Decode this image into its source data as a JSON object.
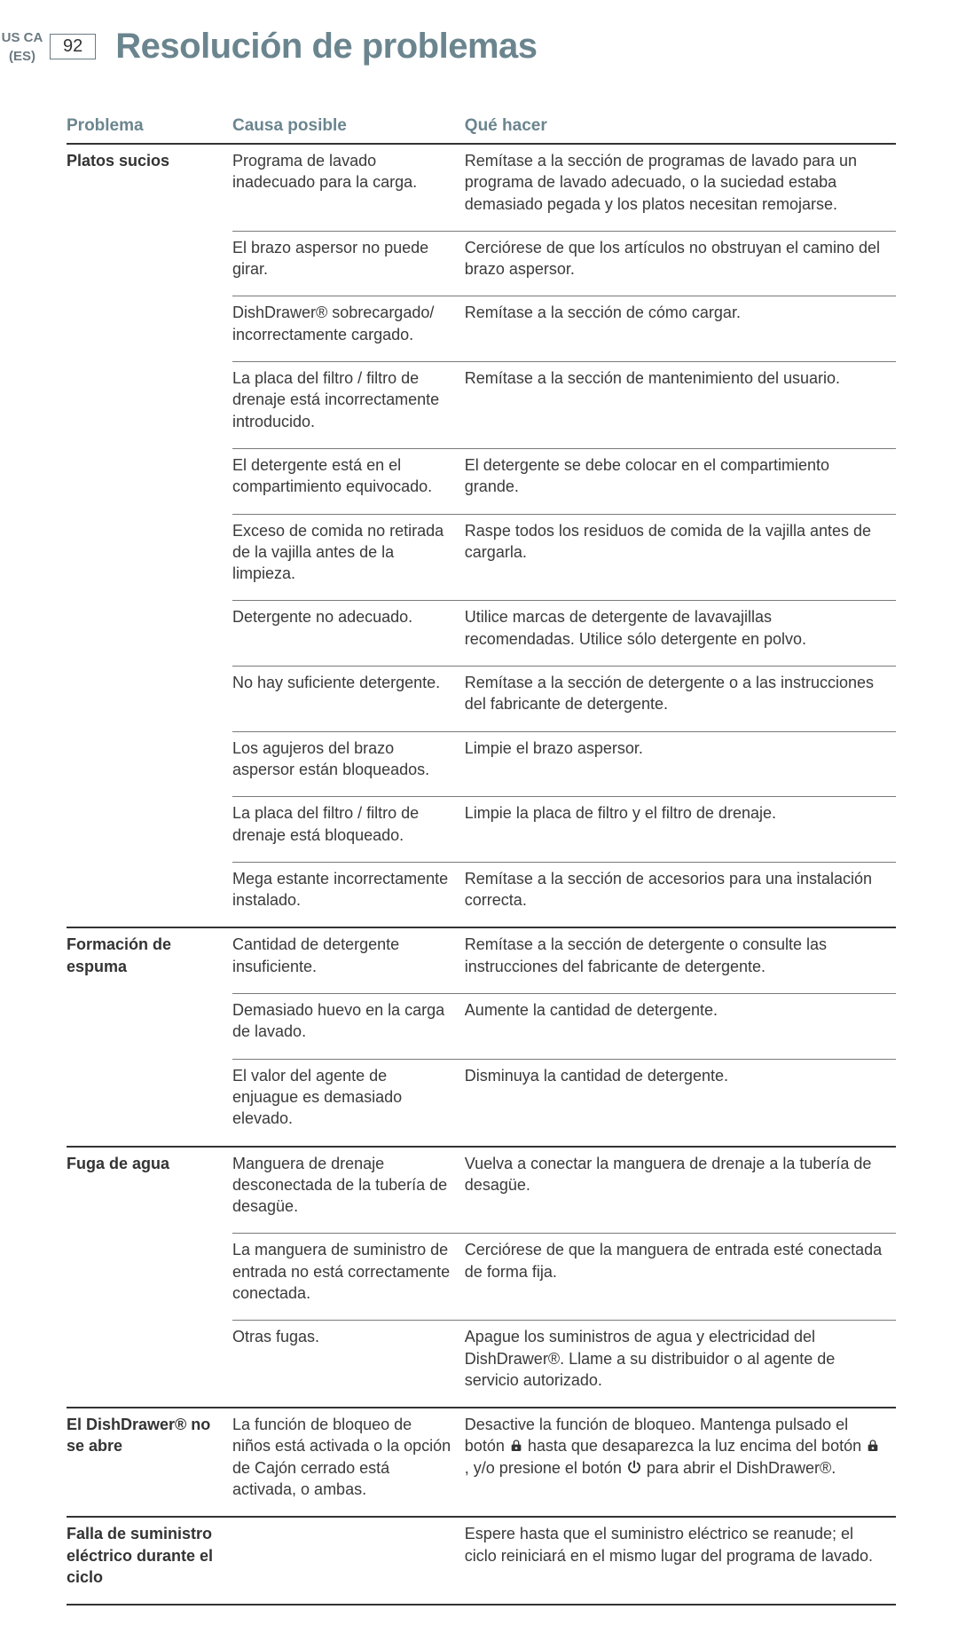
{
  "locale_row1": "US CA",
  "locale_row2": "(ES)",
  "page_number": "92",
  "page_title": "Resolución de problemas",
  "columns": [
    "Problema",
    "Causa posible",
    "Qué hacer"
  ],
  "problems": [
    {
      "label": "Platos sucios",
      "rows": [
        {
          "cause": "Programa de lavado inadecuado para la carga.",
          "action": "Remítase a la sección de programas de lavado para un programa de lavado adecuado, o la suciedad estaba demasiado pegada y los platos necesitan remojarse."
        },
        {
          "cause": "El brazo aspersor no puede girar.",
          "action": "Cerciórese de que los artículos no obstruyan el camino del brazo aspersor."
        },
        {
          "cause": "DishDrawer® sobrecargado/ incorrectamente cargado.",
          "action": "Remítase a la sección de cómo cargar."
        },
        {
          "cause": "La placa del filtro / filtro de drenaje está incorrectamente introducido.",
          "action": "Remítase a la sección de mantenimiento del usuario."
        },
        {
          "cause": "El detergente está en el compartimiento equivocado.",
          "action": "El detergente se debe colocar en el compartimiento grande."
        },
        {
          "cause": "Exceso de comida no retirada de la vajilla antes de la limpieza.",
          "action": "Raspe todos los residuos de comida de la vajilla antes de cargarla."
        },
        {
          "cause": "Detergente no adecuado.",
          "action": "Utilice marcas de detergente de lavavajillas recomendadas. Utilice sólo detergente en polvo."
        },
        {
          "cause": "No hay suficiente detergente.",
          "action": "Remítase a la sección de detergente o a las instrucciones del fabricante de detergente."
        },
        {
          "cause": "Los agujeros del brazo aspersor están bloqueados.",
          "action": "Limpie el brazo aspersor."
        },
        {
          "cause": "La placa del filtro / filtro de drenaje está bloqueado.",
          "action": "Limpie la placa de filtro y el filtro de drenaje."
        },
        {
          "cause": "Mega estante incorrectamente instalado.",
          "action": "Remítase a la sección de accesorios para una instalación correcta."
        }
      ]
    },
    {
      "label": "Formación de espuma",
      "rows": [
        {
          "cause": "Cantidad de detergente insuficiente.",
          "action": "Remítase a la sección de detergente o consulte las instrucciones del fabricante de detergente."
        },
        {
          "cause": "Demasiado huevo en la carga de lavado.",
          "action": "Aumente la cantidad de detergente."
        },
        {
          "cause": "El valor del agente de enjuague es demasiado elevado.",
          "action": "Disminuya la cantidad de detergente."
        }
      ]
    },
    {
      "label": "Fuga de agua",
      "rows": [
        {
          "cause": "Manguera de drenaje desconectada de la tubería de desagüe.",
          "action": "Vuelva a conectar la manguera de drenaje a la tubería de desagüe."
        },
        {
          "cause": "La manguera de suministro de entrada no está correctamente conectada.",
          "action": "Cerciórese de que la manguera de entrada esté conectada de forma fija."
        },
        {
          "cause": "Otras fugas.",
          "action": "Apague los suministros de agua y electricidad del DishDrawer®. Llame a su distribuidor o al agente de servicio autorizado."
        }
      ]
    },
    {
      "label": "El DishDrawer® no se abre",
      "rows": [
        {
          "cause": "La función de bloqueo de niños está activada o la opción de Cajón cerrado está activada, o ambas.",
          "action_parts": {
            "p1": "Desactive la función de bloqueo. Mantenga pulsado el botón ",
            "p2": " hasta que desaparezca la luz encima del botón ",
            "p3": " , y/o presione el botón ",
            "p4": " para abrir el DishDrawer®."
          }
        }
      ]
    },
    {
      "label": "Falla de suministro eléctrico durante el ciclo",
      "rows": [
        {
          "cause": "",
          "action": "Espere hasta que el suministro eléctrico se reanude; el ciclo reiniciará en el mismo lugar del programa de lavado."
        }
      ]
    }
  ]
}
